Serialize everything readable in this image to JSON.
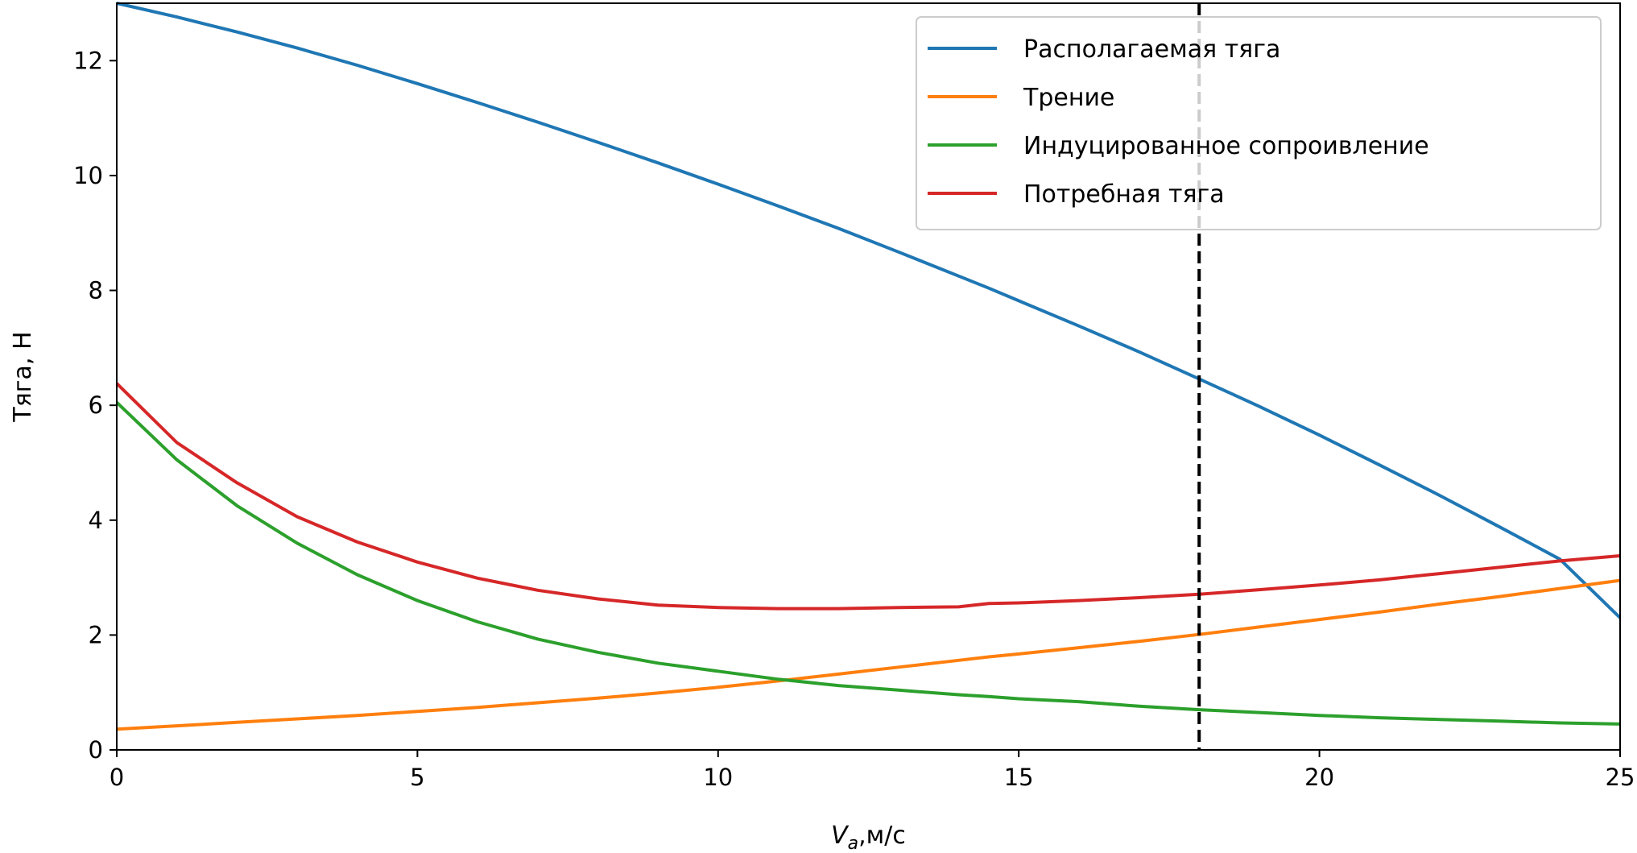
{
  "chart_data": {
    "type": "line",
    "xlabel_main": "V",
    "xlabel_sub": "a",
    "xlabel_rest": ",м/с",
    "ylabel": "Тяга, Н",
    "xlim": [
      0,
      25
    ],
    "ylim": [
      0,
      13
    ],
    "xticks": [
      0,
      5,
      10,
      15,
      20,
      25
    ],
    "xtick_labels": [
      "0",
      "5",
      "10",
      "15",
      "20",
      "25"
    ],
    "yticks": [
      0,
      2,
      4,
      6,
      8,
      10,
      12
    ],
    "ytick_labels": [
      "0",
      "2",
      "4",
      "6",
      "8",
      "10",
      "12"
    ],
    "grid": false,
    "legend_position": "top-right",
    "vline": {
      "x": 18,
      "style": "dashed",
      "color": "#000000"
    },
    "x": [
      0,
      1,
      2,
      3,
      4,
      5,
      6,
      7,
      8,
      9,
      10,
      11,
      12,
      13,
      14,
      14.5,
      15,
      16,
      17,
      18,
      19,
      20,
      21,
      22,
      23,
      24,
      25
    ],
    "series": [
      {
        "name": "Располагаемая тяга",
        "color": "#1f77b4",
        "values": [
          13.0,
          12.76,
          12.5,
          12.22,
          11.92,
          11.6,
          11.27,
          10.93,
          10.58,
          10.22,
          9.85,
          9.47,
          9.08,
          8.67,
          8.25,
          8.04,
          7.82,
          7.38,
          6.93,
          6.46,
          5.98,
          5.48,
          4.96,
          4.43,
          3.88,
          3.32,
          2.3
        ]
      },
      {
        "name": "Трение",
        "color": "#ff7f0e",
        "values": [
          0.36,
          0.42,
          0.48,
          0.54,
          0.6,
          0.67,
          0.74,
          0.82,
          0.9,
          0.99,
          1.09,
          1.2,
          1.32,
          1.44,
          1.56,
          1.62,
          1.67,
          1.78,
          1.89,
          2.01,
          2.14,
          2.27,
          2.4,
          2.54,
          2.67,
          2.81,
          2.95
        ]
      },
      {
        "name": "Индуцированное сопроивление",
        "color": "#2ca02c",
        "values": [
          6.05,
          5.05,
          4.25,
          3.6,
          3.05,
          2.6,
          2.23,
          1.93,
          1.7,
          1.51,
          1.37,
          1.23,
          1.12,
          1.04,
          0.96,
          0.93,
          0.89,
          0.84,
          0.76,
          0.7,
          0.65,
          0.6,
          0.56,
          0.53,
          0.5,
          0.47,
          0.45
        ]
      },
      {
        "name": "Потребная тяга",
        "color": "#d62728",
        "values": [
          6.38,
          5.35,
          4.65,
          4.06,
          3.62,
          3.27,
          2.99,
          2.78,
          2.63,
          2.52,
          2.48,
          2.46,
          2.46,
          2.48,
          2.49,
          2.55,
          2.56,
          2.6,
          2.65,
          2.71,
          2.79,
          2.87,
          2.96,
          3.07,
          3.18,
          3.29,
          3.38
        ]
      }
    ]
  }
}
